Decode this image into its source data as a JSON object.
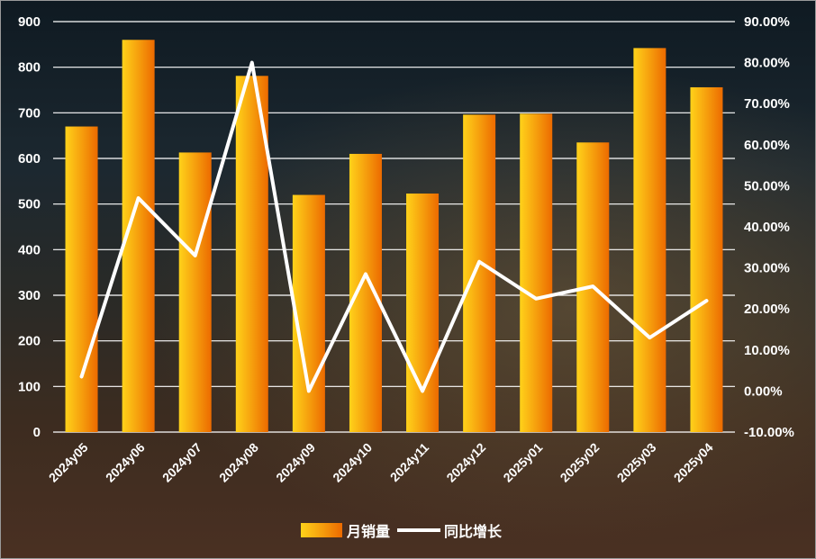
{
  "chart_data": {
    "type": "bar",
    "categories": [
      "2024y05",
      "2024y06",
      "2024y07",
      "2024y08",
      "2024y09",
      "2024y10",
      "2024y11",
      "2024y12",
      "2025y01",
      "2025y02",
      "2025y03",
      "2025y04"
    ],
    "series": [
      {
        "name": "月销量",
        "type": "bar",
        "axis": "left",
        "values": [
          670,
          860,
          613,
          781,
          520,
          610,
          523,
          696,
          698,
          635,
          842,
          756
        ]
      },
      {
        "name": "同比增长",
        "type": "line",
        "axis": "right",
        "values": [
          3.5,
          47.0,
          33.0,
          80.0,
          0.0,
          28.5,
          0.0,
          31.5,
          22.5,
          25.5,
          13.0,
          22.0
        ]
      }
    ],
    "y_left": {
      "min": 0,
      "max": 900,
      "step": 100,
      "tick_labels": [
        "0",
        "100",
        "200",
        "300",
        "400",
        "500",
        "600",
        "700",
        "800",
        "900"
      ]
    },
    "y_right": {
      "min": -10,
      "max": 90,
      "step": 10,
      "tick_labels": [
        "-10.00%",
        "0.00%",
        "10.00%",
        "20.00%",
        "30.00%",
        "40.00%",
        "50.00%",
        "60.00%",
        "70.00%",
        "80.00%",
        "90.00%"
      ]
    },
    "grid": true,
    "legend_position": "bottom",
    "colors": {
      "bar_light": "#ffd21a",
      "bar_dark": "#ee6e00",
      "line": "#ffffff",
      "grid": "#ffffff",
      "text": "#ffffff"
    }
  }
}
